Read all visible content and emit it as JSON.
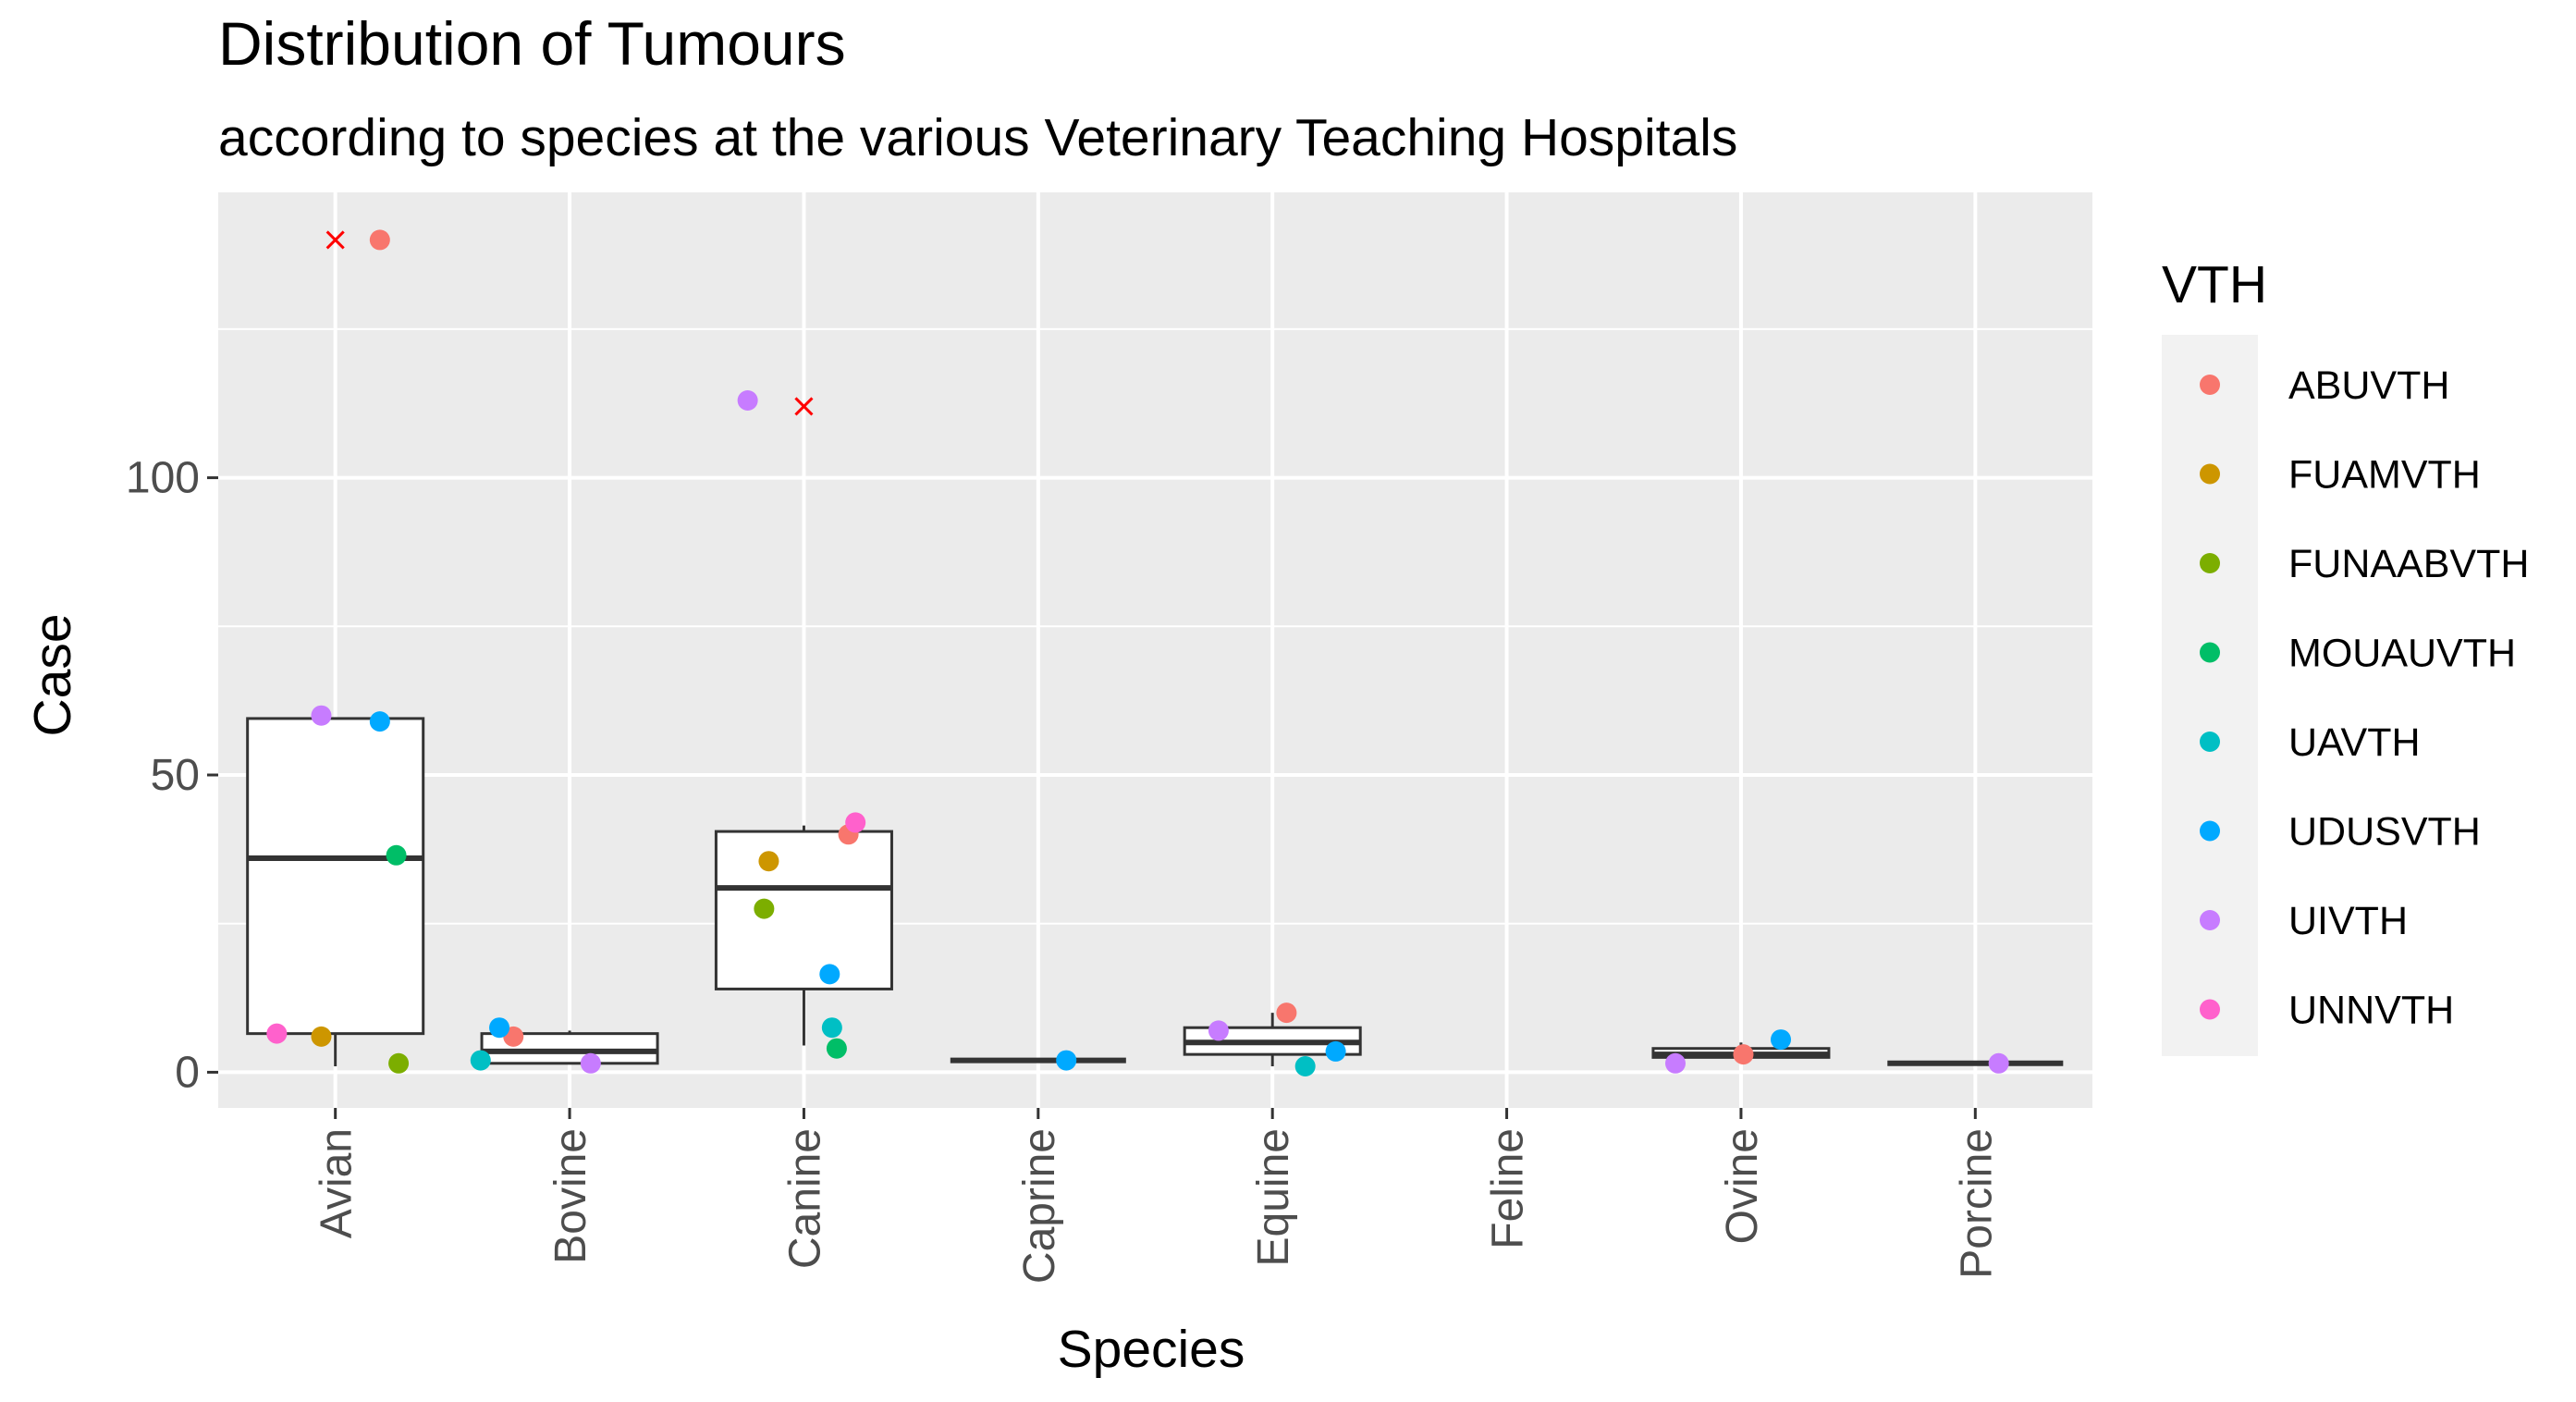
{
  "chart_data": {
    "type": "boxplot-jitter",
    "title": "Distribution of Tumours",
    "subtitle": "according to species at the various Veterinary Teaching Hospitals",
    "xlabel": "Species",
    "ylabel": "Case",
    "ylim": [
      -6,
      148
    ],
    "yticks": [
      0,
      50,
      100
    ],
    "categories": [
      "Avian",
      "Bovine",
      "Canine",
      "Caprine",
      "Equine",
      "Feline",
      "Ovine",
      "Porcine"
    ],
    "legend": {
      "title": "VTH",
      "position": "right",
      "entries": [
        {
          "name": "ABUVTH",
          "color": "#F8766D"
        },
        {
          "name": "FUAMVTH",
          "color": "#CD9600"
        },
        {
          "name": "FUNAABVTH",
          "color": "#7CAE00"
        },
        {
          "name": "MOUAUVTH",
          "color": "#00BE67"
        },
        {
          "name": "UAVTH",
          "color": "#00BFC4"
        },
        {
          "name": "UDUSVTH",
          "color": "#00A9FF"
        },
        {
          "name": "UIVTH",
          "color": "#C77CFF"
        },
        {
          "name": "UNNVTH",
          "color": "#FF61CC"
        }
      ]
    },
    "boxes": [
      {
        "category": "Avian",
        "lower_whisker": 1,
        "q1": 6.5,
        "median": 36,
        "q3": 59.5,
        "upper_whisker": 59.5,
        "outliers": [
          140
        ]
      },
      {
        "category": "Bovine",
        "lower_whisker": 1.5,
        "q1": 1.5,
        "median": 3.5,
        "q3": 6.5,
        "upper_whisker": 7,
        "outliers": []
      },
      {
        "category": "Canine",
        "lower_whisker": 4.5,
        "q1": 14,
        "median": 31,
        "q3": 40.5,
        "upper_whisker": 41.5,
        "outliers": [
          112
        ]
      },
      {
        "category": "Caprine",
        "lower_whisker": 2,
        "q1": 2,
        "median": 2,
        "q3": 2,
        "upper_whisker": 2,
        "outliers": []
      },
      {
        "category": "Equine",
        "lower_whisker": 1,
        "q1": 3,
        "median": 5,
        "q3": 7.5,
        "upper_whisker": 10,
        "outliers": []
      },
      {
        "category": "Ovine",
        "lower_whisker": 2,
        "q1": 2.5,
        "median": 3,
        "q3": 4,
        "upper_whisker": 5,
        "outliers": []
      },
      {
        "category": "Porcine",
        "lower_whisker": 1.5,
        "q1": 1.5,
        "median": 1.5,
        "q3": 1.5,
        "upper_whisker": 1.5,
        "outliers": []
      }
    ],
    "points": [
      {
        "category": "Avian",
        "jitter": 0.19,
        "value": 140,
        "vth": "ABUVTH"
      },
      {
        "category": "Avian",
        "jitter": -0.06,
        "value": 6,
        "vth": "FUAMVTH"
      },
      {
        "category": "Avian",
        "jitter": 0.27,
        "value": 1.5,
        "vth": "FUNAABVTH"
      },
      {
        "category": "Avian",
        "jitter": 0.26,
        "value": 36.5,
        "vth": "MOUAUVTH"
      },
      {
        "category": "Avian",
        "jitter": 0.19,
        "value": 59,
        "vth": "UDUSVTH"
      },
      {
        "category": "Avian",
        "jitter": -0.06,
        "value": 60,
        "vth": "UIVTH"
      },
      {
        "category": "Avian",
        "jitter": -0.25,
        "value": 6.5,
        "vth": "UNNVTH"
      },
      {
        "category": "Bovine",
        "jitter": -0.24,
        "value": 6,
        "vth": "ABUVTH"
      },
      {
        "category": "Bovine",
        "jitter": -0.38,
        "value": 2,
        "vth": "UAVTH"
      },
      {
        "category": "Bovine",
        "jitter": -0.3,
        "value": 7.5,
        "vth": "UDUSVTH"
      },
      {
        "category": "Bovine",
        "jitter": 0.09,
        "value": 1.5,
        "vth": "UIVTH"
      },
      {
        "category": "Canine",
        "jitter": 0.19,
        "value": 40,
        "vth": "ABUVTH"
      },
      {
        "category": "Canine",
        "jitter": -0.15,
        "value": 35.5,
        "vth": "FUAMVTH"
      },
      {
        "category": "Canine",
        "jitter": -0.17,
        "value": 27.5,
        "vth": "FUNAABVTH"
      },
      {
        "category": "Canine",
        "jitter": 0.14,
        "value": 4,
        "vth": "MOUAUVTH"
      },
      {
        "category": "Canine",
        "jitter": 0.12,
        "value": 7.5,
        "vth": "UAVTH"
      },
      {
        "category": "Canine",
        "jitter": 0.11,
        "value": 16.5,
        "vth": "UDUSVTH"
      },
      {
        "category": "Canine",
        "jitter": -0.24,
        "value": 113,
        "vth": "UIVTH"
      },
      {
        "category": "Canine",
        "jitter": 0.22,
        "value": 42,
        "vth": "UNNVTH"
      },
      {
        "category": "Caprine",
        "jitter": 0.12,
        "value": 2,
        "vth": "UDUSVTH"
      },
      {
        "category": "Equine",
        "jitter": 0.06,
        "value": 10,
        "vth": "ABUVTH"
      },
      {
        "category": "Equine",
        "jitter": 0.14,
        "value": 1,
        "vth": "UAVTH"
      },
      {
        "category": "Equine",
        "jitter": 0.27,
        "value": 3.5,
        "vth": "UDUSVTH"
      },
      {
        "category": "Equine",
        "jitter": -0.23,
        "value": 7,
        "vth": "UIVTH"
      },
      {
        "category": "Ovine",
        "jitter": 0.01,
        "value": 3,
        "vth": "ABUVTH"
      },
      {
        "category": "Ovine",
        "jitter": 0.17,
        "value": 5.5,
        "vth": "UDUSVTH"
      },
      {
        "category": "Ovine",
        "jitter": -0.28,
        "value": 1.5,
        "vth": "UIVTH"
      },
      {
        "category": "Porcine",
        "jitter": 0.1,
        "value": 1.5,
        "vth": "UIVTH"
      }
    ]
  }
}
